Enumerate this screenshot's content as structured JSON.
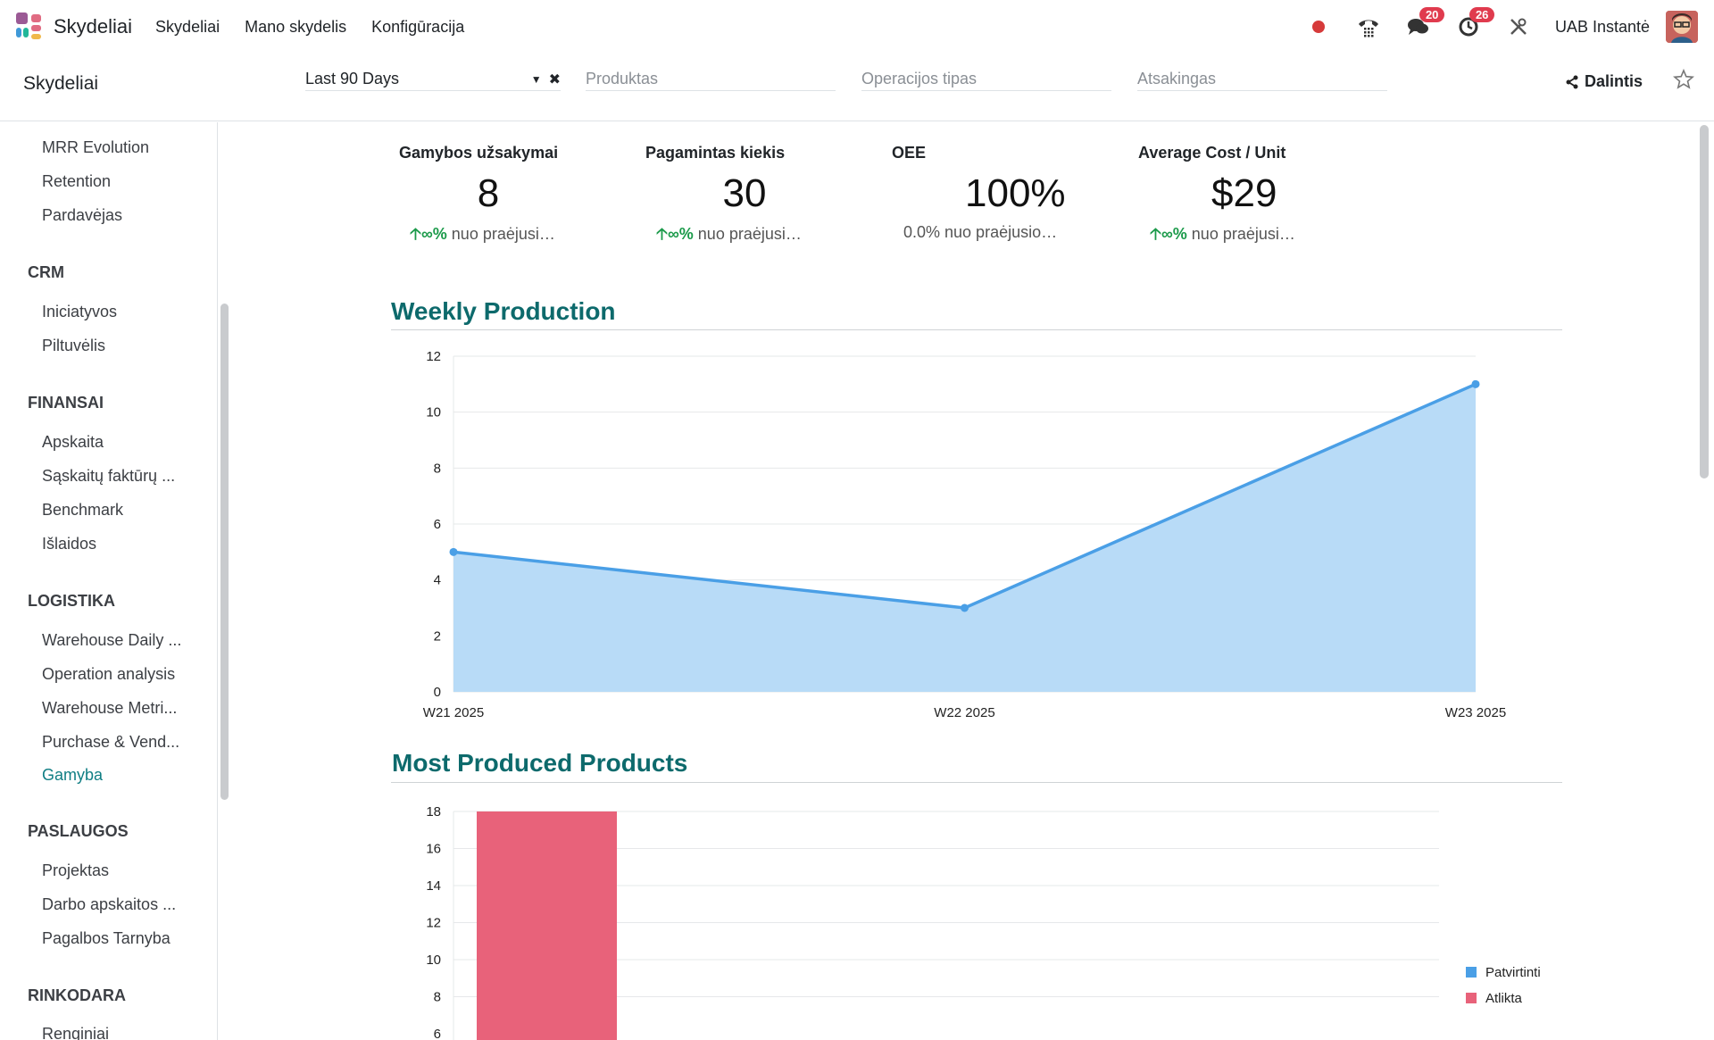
{
  "navbar": {
    "brand": "Skydeliai",
    "menu": [
      "Skydeliai",
      "Mano skydelis",
      "Konfigūracija"
    ],
    "messages_badge": "20",
    "activities_badge": "26",
    "company": "UAB Instantė"
  },
  "control": {
    "breadcrumb": "Skydeliai",
    "date_filter": "Last 90 Days",
    "product_placeholder": "Produktas",
    "operation_placeholder": "Operacijos tipas",
    "responsible_placeholder": "Atsakingas",
    "share_label": "Dalintis"
  },
  "sidebar": {
    "top_items": [
      "MRR Evolution",
      "Retention",
      "Pardavėjas"
    ],
    "crm": {
      "title": "CRM",
      "items": [
        "Iniciatyvos",
        "Piltuvėlis"
      ]
    },
    "finansai": {
      "title": "FINANSAI",
      "items": [
        "Apskaita",
        "Sąskaitų faktūrų ...",
        "Benchmark",
        "Išlaidos"
      ]
    },
    "logistika": {
      "title": "LOGISTIKA",
      "items": [
        "Warehouse Daily ...",
        "Operation analysis",
        "Warehouse Metri...",
        "Purchase & Vend...",
        "Gamyba"
      ]
    },
    "paslaugos": {
      "title": "PASLAUGOS",
      "items": [
        "Projektas",
        "Darbo apskaitos ...",
        "Pagalbos Tarnyba"
      ]
    },
    "rinkodara": {
      "title": "RINKODARA",
      "items": [
        "Renginiai"
      ]
    }
  },
  "kpis": [
    {
      "title": "Gamybos užsakymai",
      "value": "8",
      "trend_icon": "∞%",
      "trend_text": "nuo praėjusi…",
      "up": true
    },
    {
      "title": "Pagamintas kiekis",
      "value": "30",
      "trend_icon": "∞%",
      "trend_text": "nuo praėjusi…",
      "up": true
    },
    {
      "title": "OEE",
      "value": "100%",
      "trend_icon": "",
      "trend_text": "0.0% nuo praėjusio…",
      "up": false
    },
    {
      "title": "Average Cost / Unit",
      "value": "$29",
      "trend_icon": "∞%",
      "trend_text": "nuo praėjusi…",
      "up": true
    }
  ],
  "sections": {
    "weekly": "Weekly Production",
    "products": "Most Produced Products"
  },
  "colors": {
    "accent": "#0d6a6c",
    "line": "#4a9fe6",
    "area": "#b8dbf7",
    "bar_done": "#e8627a",
    "legend_confirmed": "#4a9fe6"
  },
  "chart_data": [
    {
      "type": "area",
      "title": "Weekly Production",
      "categories": [
        "W21 2025",
        "W22 2025",
        "W23 2025"
      ],
      "values": [
        5,
        3,
        11
      ],
      "ylim": [
        0,
        12
      ],
      "yticks": [
        0,
        2,
        4,
        6,
        8,
        10,
        12
      ],
      "grid": true
    },
    {
      "type": "bar",
      "title": "Most Produced Products",
      "series": [
        {
          "name": "Patvirtinti",
          "values": [
            0
          ]
        },
        {
          "name": "Atlikta",
          "values": [
            18
          ]
        }
      ],
      "yticks_visible": [
        8,
        10,
        12,
        14,
        16,
        18
      ],
      "ylim": [
        0,
        18
      ],
      "legend": "right",
      "grid": true
    }
  ]
}
